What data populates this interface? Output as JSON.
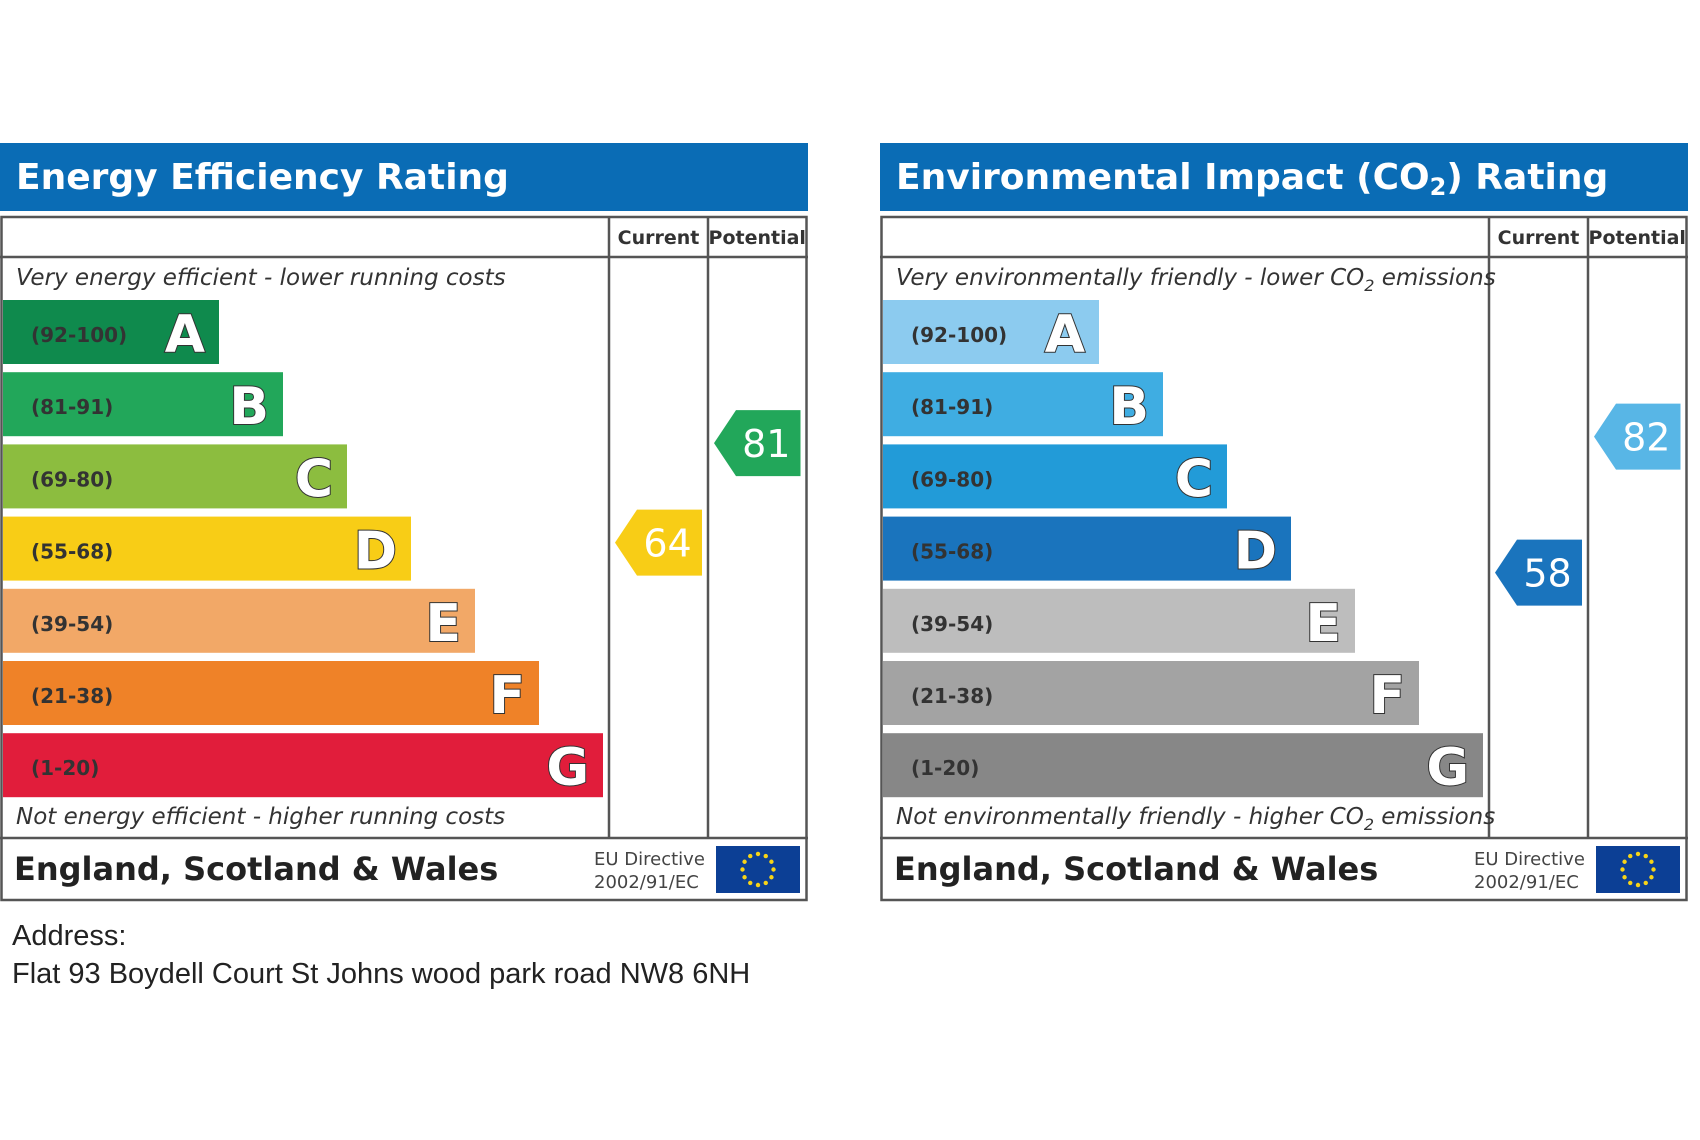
{
  "chart_data": [
    {
      "type": "bar",
      "title": "Energy Efficiency Rating",
      "column_headers": {
        "current": "Current",
        "potential": "Potential"
      },
      "top_caption": "Very energy efficient - lower running costs",
      "bottom_caption": "Not energy efficient - higher running costs",
      "bands": [
        {
          "range": "(92-100)",
          "letter": "A",
          "color": "#0f8a4d"
        },
        {
          "range": "(81-91)",
          "letter": "B",
          "color": "#22a75a"
        },
        {
          "range": "(69-80)",
          "letter": "C",
          "color": "#8cbd3f"
        },
        {
          "range": "(55-68)",
          "letter": "D",
          "color": "#f8cd16"
        },
        {
          "range": "(39-54)",
          "letter": "E",
          "color": "#f2a867"
        },
        {
          "range": "(21-38)",
          "letter": "F",
          "color": "#ef8228"
        },
        {
          "range": "(1-20)",
          "letter": "G",
          "color": "#e11d3b"
        }
      ],
      "current": {
        "value": 64,
        "color": "#f8cd16"
      },
      "potential": {
        "value": 81,
        "color": "#22a75a"
      },
      "footer": {
        "region": "England, Scotland & Wales",
        "directive_line1": "EU Directive",
        "directive_line2": "2002/91/EC"
      }
    },
    {
      "type": "bar",
      "title_parts": {
        "before": "Environmental Impact (CO",
        "sub": "2",
        "after": ") Rating"
      },
      "column_headers": {
        "current": "Current",
        "potential": "Potential"
      },
      "top_caption_parts": {
        "before": "Very environmentally friendly - lower CO",
        "sub": "2",
        "after": " emissions"
      },
      "bottom_caption_parts": {
        "before": "Not environmentally friendly - higher CO",
        "sub": "2",
        "after": " emissions"
      },
      "bands": [
        {
          "range": "(92-100)",
          "letter": "A",
          "color": "#8ccbef"
        },
        {
          "range": "(81-91)",
          "letter": "B",
          "color": "#3fade2"
        },
        {
          "range": "(69-80)",
          "letter": "C",
          "color": "#229bd8"
        },
        {
          "range": "(55-68)",
          "letter": "D",
          "color": "#1a74bd"
        },
        {
          "range": "(39-54)",
          "letter": "E",
          "color": "#bdbdbd"
        },
        {
          "range": "(21-38)",
          "letter": "F",
          "color": "#a3a3a3"
        },
        {
          "range": "(1-20)",
          "letter": "G",
          "color": "#878787"
        }
      ],
      "current": {
        "value": 58,
        "color": "#1a74bd"
      },
      "potential": {
        "value": 82,
        "color": "#58b6e6"
      },
      "footer": {
        "region": "England, Scotland & Wales",
        "directive_line1": "EU Directive",
        "directive_line2": "2002/91/EC"
      }
    }
  ],
  "colors": {
    "header_blue": "#0a6cb5",
    "frame": "#555555",
    "eu_flag": "#0c3f95",
    "eu_star": "#f7d417"
  },
  "address": {
    "label": "Address:",
    "line": "Flat 93 Boydell Court St Johns wood park road NW8 6NH"
  }
}
